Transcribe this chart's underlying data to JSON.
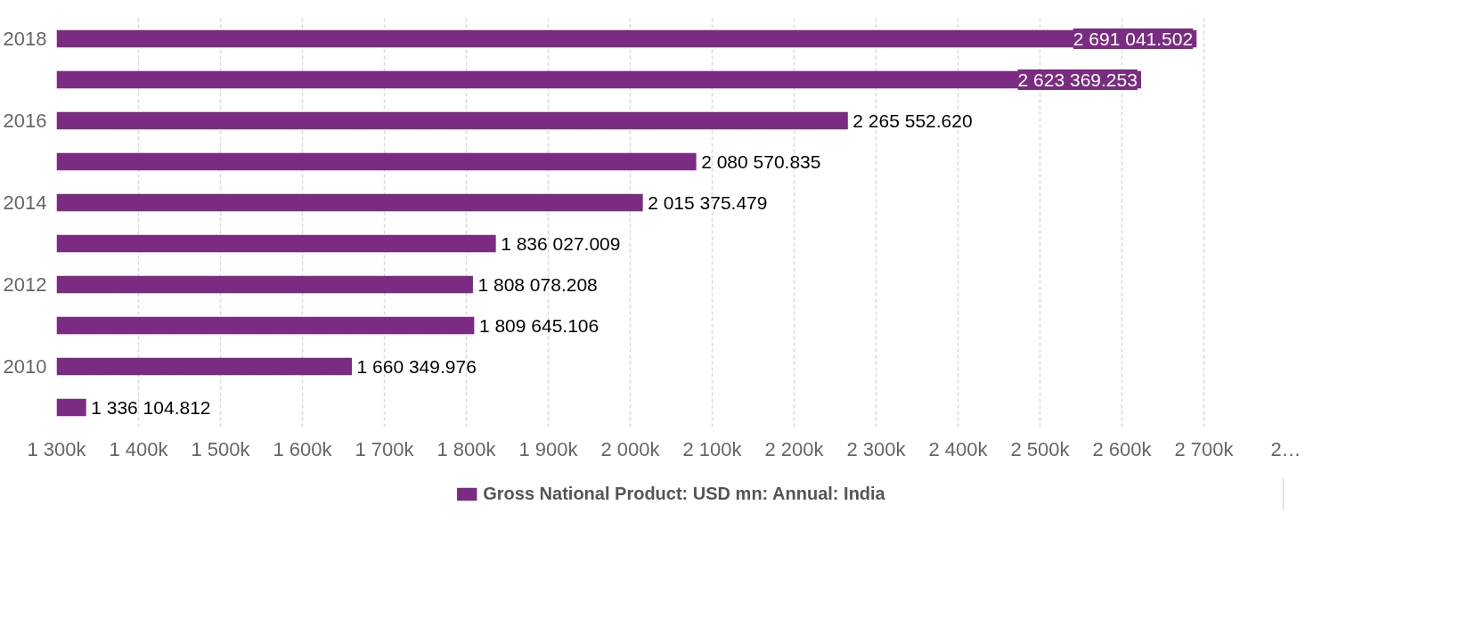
{
  "chart_data": {
    "type": "bar",
    "orientation": "horizontal",
    "categories": [
      "2018",
      null,
      "2016",
      null,
      "2014",
      null,
      "2012",
      null,
      "2010",
      null
    ],
    "series": [
      {
        "name": "Gross National Product: USD mn: Annual: India",
        "color": "#7b2c82",
        "values": [
          2691041.502,
          2623369.253,
          2265552.62,
          2080570.835,
          2015375.479,
          1836027.009,
          1808078.208,
          1809645.106,
          1660349.976,
          1336104.812
        ],
        "value_labels": [
          "2 691 041.502",
          "2 623 369.253",
          "2 265 552.620",
          "2 080 570.835",
          "2 015 375.479",
          "1 836 027.009",
          "1 808 078.208",
          "1 809 645.106",
          "1 660 349.976",
          "1 336 104.812"
        ]
      }
    ],
    "xlim": [
      1300000,
      2800000
    ],
    "xticks": [
      {
        "value": 1300000,
        "label": "1 300k"
      },
      {
        "value": 1400000,
        "label": "1 400k"
      },
      {
        "value": 1500000,
        "label": "1 500k"
      },
      {
        "value": 1600000,
        "label": "1 600k"
      },
      {
        "value": 1700000,
        "label": "1 700k"
      },
      {
        "value": 1800000,
        "label": "1 800k"
      },
      {
        "value": 1900000,
        "label": "1 900k"
      },
      {
        "value": 2000000,
        "label": "2 000k"
      },
      {
        "value": 2100000,
        "label": "2 100k"
      },
      {
        "value": 2200000,
        "label": "2 200k"
      },
      {
        "value": 2300000,
        "label": "2 300k"
      },
      {
        "value": 2400000,
        "label": "2 400k"
      },
      {
        "value": 2500000,
        "label": "2 500k"
      },
      {
        "value": 2600000,
        "label": "2 600k"
      },
      {
        "value": 2700000,
        "label": "2 700k"
      },
      {
        "value": 2800000,
        "label": "2…"
      }
    ],
    "grid": "x",
    "legend": "bottom"
  }
}
